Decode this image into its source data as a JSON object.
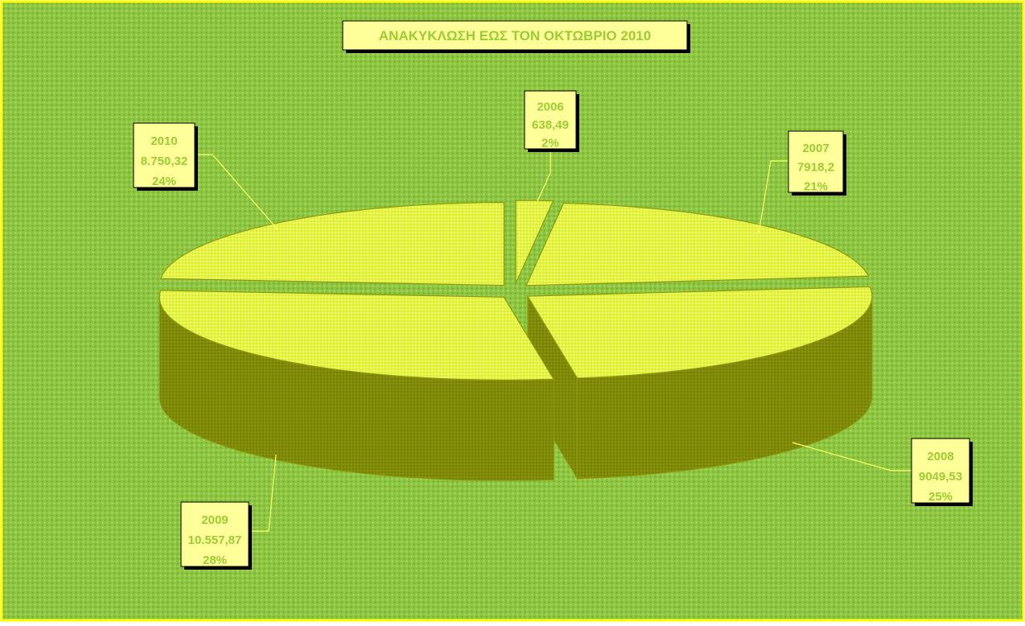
{
  "chart_data": {
    "type": "pie",
    "title": "ΑΝΑΚΥΚΛΩΣΗ ΕΩΣ ΤΟΝ ΟΚΤΩΒΡΙΟ 2010",
    "three_d": true,
    "exploded": true,
    "slices": [
      {
        "category": "2006",
        "value_label": "638,49",
        "percent_label": "2%",
        "value": 638.49,
        "percent": 2
      },
      {
        "category": "2007",
        "value_label": "7918,2",
        "percent_label": "21%",
        "value": 7918.2,
        "percent": 21
      },
      {
        "category": "2008",
        "value_label": "9049,53",
        "percent_label": "25%",
        "value": 9049.53,
        "percent": 25
      },
      {
        "category": "2009",
        "value_label": "10.557,87",
        "percent_label": "28%",
        "value": 10557.87,
        "percent": 28
      },
      {
        "category": "2010",
        "value_label": "8.750,32",
        "percent_label": "24%",
        "value": 8750.32,
        "percent": 24
      }
    ],
    "legend": "none",
    "colors": {
      "background": "#8dc63f",
      "background_dots": "#b9d97a",
      "border": "#ffff00",
      "slice_top": "#e6f542",
      "slice_side": "#7f8a08",
      "slice_edge": "#8f9a10",
      "label_fill": "#ffff99",
      "label_text": "#9acd32",
      "title_text": "#9acd32",
      "leader_line": "#ffff66"
    }
  }
}
